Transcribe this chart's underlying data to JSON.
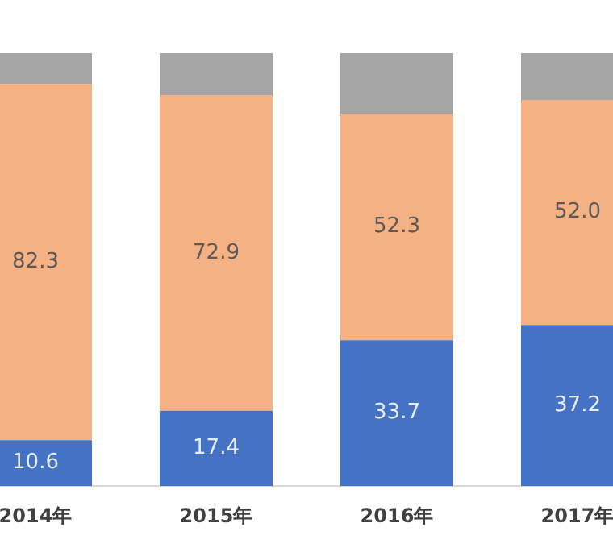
{
  "chart_data": {
    "type": "bar",
    "stacked": true,
    "categories": [
      "2014年",
      "2015年",
      "2016年",
      "2017年"
    ],
    "series": [
      {
        "color": "#4472c4",
        "values": [
          10.6,
          17.4,
          33.7,
          37.2
        ],
        "value_labels": [
          "10.6",
          "17.4",
          "33.7",
          "37.2"
        ]
      },
      {
        "color": "#f4b183",
        "values": [
          82.3,
          72.9,
          52.3,
          52.0
        ],
        "value_labels": [
          "82.3",
          "72.9",
          "52.3",
          "52.0"
        ]
      },
      {
        "color": "#a5a5a5",
        "values": [
          7.1,
          9.7,
          14.0,
          10.8
        ],
        "value_labels": [
          null,
          null,
          null,
          null
        ]
      }
    ],
    "ylim": [
      0,
      100
    ],
    "tick_labels": "x",
    "grid": false,
    "legend": false
  }
}
